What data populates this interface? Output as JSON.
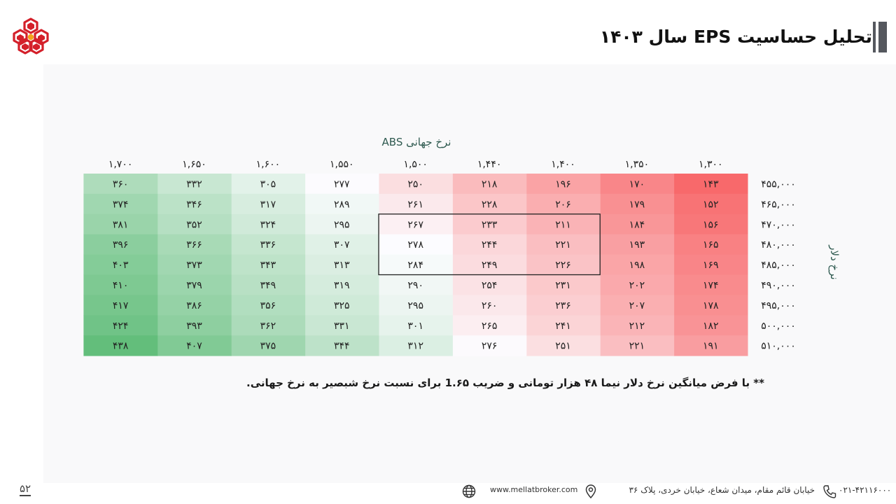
{
  "slide": {
    "title": "تحلیل حساسیت EPS سال ۱۴۰۳",
    "note": "** با فرض میانگین نرخ دلار نیما ۴۸ هزار تومانی و ضریب 1.۶۵ برای نسبت نرخ شبصیر به نرخ جهانی.",
    "page_number": "۵۲"
  },
  "footer": {
    "phone": "۰۲۱-۴۲۱۱۶۰۰۰",
    "address": "خیابان قائم مقام، میدان شعاع، خیابان خردی، پلاک ۳۶",
    "website": "www.mellatbroker.com",
    "icons": [
      "phone-icon",
      "location-icon",
      "globe-icon"
    ]
  },
  "colors": {
    "low": "#f8696b",
    "mid": "#fcfcff",
    "high": "#63be7b"
  },
  "chart_data": {
    "type": "heatmap",
    "xlabel": "نرخ جهانی ABS",
    "ylabel": "نرخ دلار",
    "x_labels": [
      "۱,۳۰۰",
      "۱,۳۵۰",
      "۱,۴۰۰",
      "۱,۴۴۰",
      "۱,۵۰۰",
      "۱,۵۵۰",
      "۱,۶۰۰",
      "۱,۶۵۰",
      "۱,۷۰۰"
    ],
    "y_labels": [
      "۴۵۵,۰۰۰",
      "۴۶۵,۰۰۰",
      "۴۷۰,۰۰۰",
      "۴۸۰,۰۰۰",
      "۴۸۵,۰۰۰",
      "۴۹۰,۰۰۰",
      "۴۹۵,۰۰۰",
      "۵۰۰,۰۰۰",
      "۵۱۰,۰۰۰"
    ],
    "values": [
      [
        143,
        170,
        196,
        218,
        250,
        277,
        305,
        332,
        360
      ],
      [
        152,
        179,
        206,
        228,
        261,
        289,
        317,
        346,
        374
      ],
      [
        156,
        184,
        211,
        233,
        267,
        295,
        324,
        352,
        381
      ],
      [
        165,
        193,
        221,
        244,
        278,
        307,
        336,
        366,
        396
      ],
      [
        169,
        198,
        226,
        249,
        284,
        313,
        343,
        373,
        403
      ],
      [
        174,
        202,
        231,
        254,
        290,
        319,
        349,
        379,
        410
      ],
      [
        178,
        207,
        236,
        260,
        295,
        325,
        356,
        386,
        417
      ],
      [
        182,
        212,
        241,
        265,
        301,
        331,
        362,
        393,
        424
      ],
      [
        191,
        221,
        251,
        276,
        312,
        344,
        375,
        407,
        438
      ]
    ],
    "highlight": {
      "rows": [
        2,
        4
      ],
      "cols": [
        2,
        4
      ]
    }
  }
}
